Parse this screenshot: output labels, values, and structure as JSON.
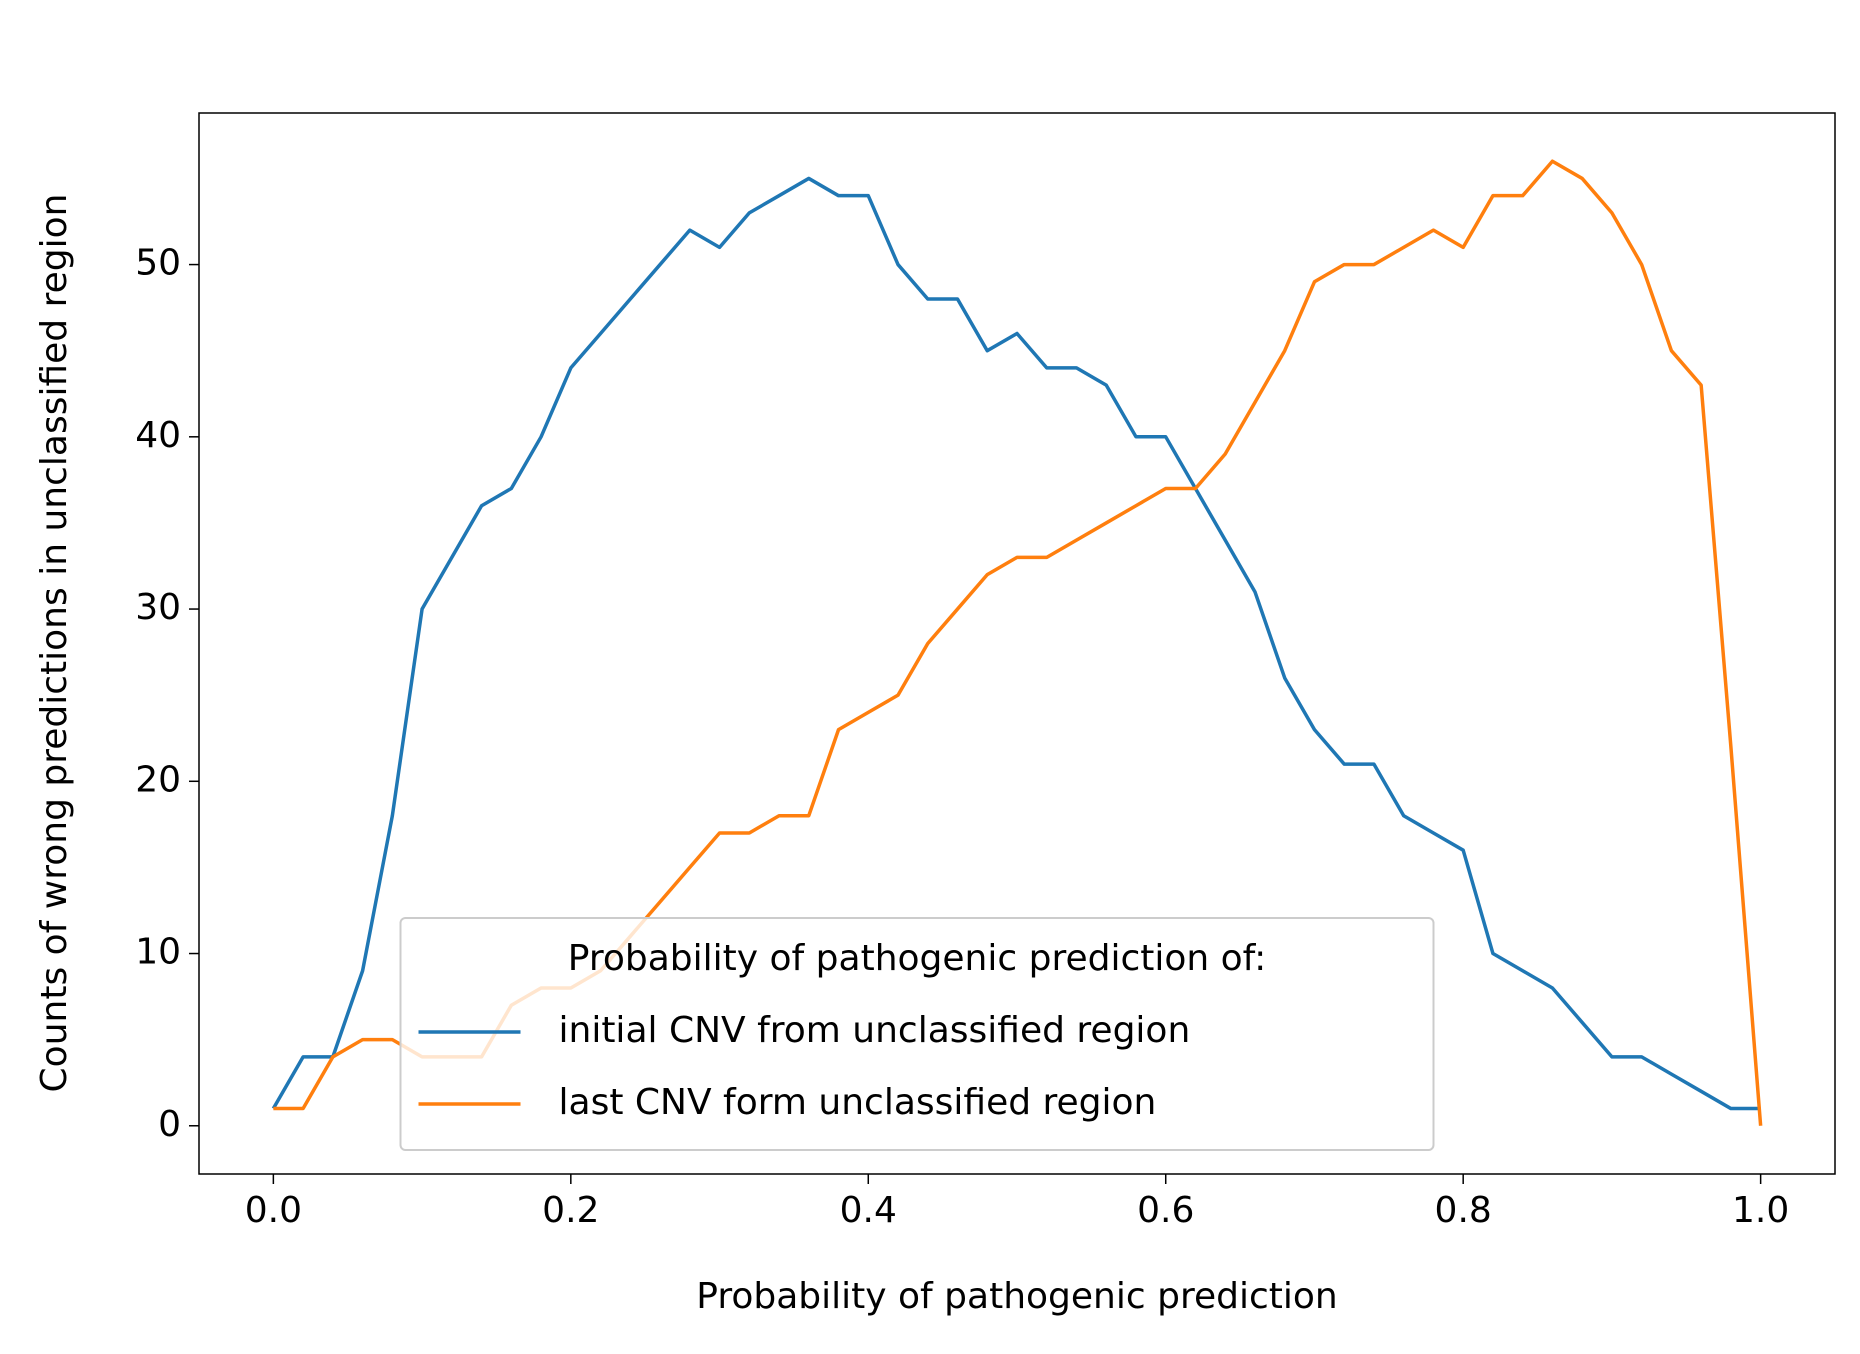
{
  "chart_data": {
    "type": "line",
    "xlabel": "Probability of pathogenic prediction",
    "ylabel": "Counts of wrong predictions in unclassified region",
    "x": [
      0,
      0.02,
      0.04,
      0.06,
      0.08,
      0.1,
      0.12,
      0.14,
      0.16,
      0.18,
      0.2,
      0.22,
      0.24,
      0.26,
      0.28,
      0.3,
      0.32,
      0.34,
      0.36,
      0.38,
      0.4,
      0.42,
      0.44,
      0.46,
      0.48,
      0.5,
      0.52,
      0.54,
      0.56,
      0.58,
      0.6,
      0.62,
      0.64,
      0.66,
      0.68,
      0.7,
      0.72,
      0.74,
      0.76,
      0.78,
      0.8,
      0.82,
      0.84,
      0.86,
      0.88,
      0.9,
      0.92,
      0.94,
      0.96,
      0.98,
      1.0
    ],
    "series": [
      {
        "name": "initial CNV from unclassified region",
        "color": "#1f77b4",
        "values": [
          1,
          4,
          4,
          9,
          18,
          30,
          33,
          36,
          37,
          40,
          44,
          46,
          48,
          50,
          52,
          51,
          53,
          54,
          55,
          54,
          54,
          50,
          48,
          48,
          45,
          46,
          44,
          44,
          43,
          40,
          40,
          37,
          34,
          31,
          26,
          23,
          21,
          21,
          18,
          17,
          16,
          10,
          9,
          8,
          6,
          4,
          4,
          3,
          2,
          1,
          1
        ]
      },
      {
        "name": "last CNV form unclassified region",
        "color": "#ff7f0e",
        "values": [
          1,
          1,
          4,
          5,
          5,
          4,
          4,
          4,
          7,
          8,
          8,
          9,
          11,
          13,
          15,
          17,
          17,
          18,
          18,
          23,
          24,
          25,
          28,
          30,
          32,
          33,
          33,
          34,
          35,
          36,
          37,
          37,
          39,
          42,
          45,
          49,
          50,
          50,
          51,
          52,
          51,
          54,
          54,
          56,
          55,
          53,
          50,
          45,
          43,
          22,
          0
        ]
      }
    ],
    "legend_title": "Probability of pathogenic prediction of:",
    "legend": "lower center",
    "xlim": [
      -0.05,
      1.05
    ],
    "xticks": [
      {
        "value": 0,
        "label": "0.0"
      },
      0.2,
      0.4,
      0.6,
      0.8,
      {
        "value": 1,
        "label": "1.0"
      }
    ],
    "ylim": [
      -2.8,
      58.8
    ],
    "yticks": [
      0,
      10,
      20,
      30,
      40,
      50
    ],
    "grid": false
  }
}
